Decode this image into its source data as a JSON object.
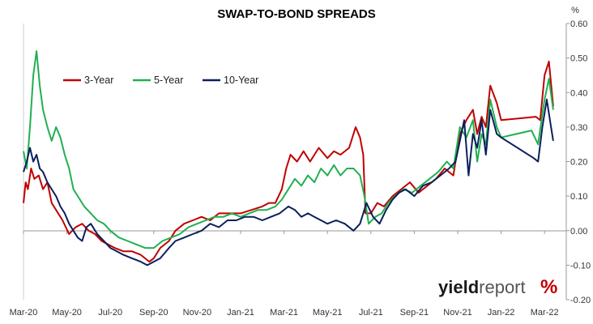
{
  "chart_data": {
    "type": "line",
    "title": "SWAP-TO-BOND SPREADS",
    "ylabel": "%",
    "xlabel": "",
    "ylim": [
      -0.2,
      0.6
    ],
    "yticks": [
      "0.60",
      "0.50",
      "0.40",
      "0.30",
      "0.20",
      "0.10",
      "0.00",
      "-0.10",
      "-0.20"
    ],
    "ytick_values": [
      0.6,
      0.5,
      0.4,
      0.3,
      0.2,
      0.1,
      0.0,
      -0.1,
      -0.2
    ],
    "xlim": [
      0,
      25
    ],
    "xticks": [
      "Mar-20",
      "May-20",
      "Jul-20",
      "Sep-20",
      "Nov-20",
      "Jan-21",
      "Mar-21",
      "May-21",
      "Jul-21",
      "Sep-21",
      "Nov-21",
      "Jan-22",
      "Mar-22"
    ],
    "xtick_values": [
      0,
      2,
      4,
      6,
      8,
      10,
      12,
      14,
      16,
      18,
      20,
      22,
      24
    ],
    "x_unit": "months from Mar-20",
    "grid": false,
    "legend_position": "top-left",
    "series": [
      {
        "name": "3-Year",
        "color": "#c00000",
        "points": [
          [
            0,
            0.08
          ],
          [
            0.1,
            0.14
          ],
          [
            0.2,
            0.12
          ],
          [
            0.35,
            0.18
          ],
          [
            0.5,
            0.15
          ],
          [
            0.7,
            0.16
          ],
          [
            0.9,
            0.12
          ],
          [
            1.1,
            0.14
          ],
          [
            1.3,
            0.08
          ],
          [
            1.5,
            0.06
          ],
          [
            1.8,
            0.03
          ],
          [
            2.1,
            -0.01
          ],
          [
            2.4,
            0.01
          ],
          [
            2.7,
            0.02
          ],
          [
            3.0,
            0.0
          ],
          [
            3.3,
            -0.01
          ],
          [
            3.6,
            -0.03
          ],
          [
            3.9,
            -0.04
          ],
          [
            4.2,
            -0.05
          ],
          [
            4.6,
            -0.06
          ],
          [
            5.0,
            -0.06
          ],
          [
            5.4,
            -0.07
          ],
          [
            5.8,
            -0.09
          ],
          [
            6.0,
            -0.08
          ],
          [
            6.3,
            -0.05
          ],
          [
            6.7,
            -0.03
          ],
          [
            7.0,
            0.0
          ],
          [
            7.4,
            0.02
          ],
          [
            7.8,
            0.03
          ],
          [
            8.2,
            0.04
          ],
          [
            8.6,
            0.03
          ],
          [
            9.0,
            0.05
          ],
          [
            9.5,
            0.05
          ],
          [
            10.0,
            0.05
          ],
          [
            10.5,
            0.06
          ],
          [
            11.0,
            0.07
          ],
          [
            11.3,
            0.08
          ],
          [
            11.6,
            0.08
          ],
          [
            11.9,
            0.12
          ],
          [
            12.1,
            0.18
          ],
          [
            12.3,
            0.22
          ],
          [
            12.6,
            0.2
          ],
          [
            12.9,
            0.23
          ],
          [
            13.2,
            0.2
          ],
          [
            13.6,
            0.24
          ],
          [
            14.0,
            0.21
          ],
          [
            14.3,
            0.23
          ],
          [
            14.6,
            0.22
          ],
          [
            15.0,
            0.24
          ],
          [
            15.3,
            0.3
          ],
          [
            15.5,
            0.27
          ],
          [
            15.65,
            0.22
          ],
          [
            15.75,
            0.05
          ],
          [
            16.0,
            0.05
          ],
          [
            16.3,
            0.08
          ],
          [
            16.6,
            0.07
          ],
          [
            17.0,
            0.1
          ],
          [
            17.4,
            0.12
          ],
          [
            17.8,
            0.14
          ],
          [
            18.2,
            0.11
          ],
          [
            18.6,
            0.13
          ],
          [
            19.0,
            0.15
          ],
          [
            19.4,
            0.18
          ],
          [
            19.8,
            0.16
          ],
          [
            20.1,
            0.28
          ],
          [
            20.4,
            0.32
          ],
          [
            20.7,
            0.35
          ],
          [
            20.9,
            0.28
          ],
          [
            21.1,
            0.33
          ],
          [
            21.3,
            0.3
          ],
          [
            21.5,
            0.42
          ],
          [
            21.8,
            0.37
          ],
          [
            22.0,
            0.32
          ],
          [
            23.6,
            0.33
          ],
          [
            23.8,
            0.32
          ],
          [
            24.0,
            0.45
          ],
          [
            24.2,
            0.49
          ],
          [
            24.4,
            0.36
          ]
        ]
      },
      {
        "name": "5-Year",
        "color": "#20b050",
        "points": [
          [
            0,
            0.23
          ],
          [
            0.15,
            0.18
          ],
          [
            0.3,
            0.3
          ],
          [
            0.45,
            0.45
          ],
          [
            0.6,
            0.52
          ],
          [
            0.75,
            0.42
          ],
          [
            0.9,
            0.35
          ],
          [
            1.1,
            0.3
          ],
          [
            1.3,
            0.26
          ],
          [
            1.5,
            0.3
          ],
          [
            1.7,
            0.27
          ],
          [
            1.9,
            0.22
          ],
          [
            2.1,
            0.18
          ],
          [
            2.3,
            0.12
          ],
          [
            2.5,
            0.1
          ],
          [
            2.8,
            0.07
          ],
          [
            3.1,
            0.05
          ],
          [
            3.4,
            0.03
          ],
          [
            3.7,
            0.02
          ],
          [
            4.0,
            0.0
          ],
          [
            4.4,
            -0.02
          ],
          [
            4.8,
            -0.03
          ],
          [
            5.2,
            -0.04
          ],
          [
            5.6,
            -0.05
          ],
          [
            6.0,
            -0.05
          ],
          [
            6.4,
            -0.03
          ],
          [
            6.8,
            -0.02
          ],
          [
            7.2,
            -0.01
          ],
          [
            7.6,
            0.01
          ],
          [
            8.0,
            0.02
          ],
          [
            8.4,
            0.03
          ],
          [
            8.8,
            0.04
          ],
          [
            9.2,
            0.04
          ],
          [
            9.6,
            0.05
          ],
          [
            10.0,
            0.04
          ],
          [
            10.4,
            0.05
          ],
          [
            10.8,
            0.06
          ],
          [
            11.2,
            0.06
          ],
          [
            11.6,
            0.07
          ],
          [
            11.9,
            0.09
          ],
          [
            12.2,
            0.12
          ],
          [
            12.5,
            0.15
          ],
          [
            12.8,
            0.13
          ],
          [
            13.1,
            0.16
          ],
          [
            13.4,
            0.14
          ],
          [
            13.7,
            0.18
          ],
          [
            14.0,
            0.16
          ],
          [
            14.3,
            0.19
          ],
          [
            14.6,
            0.16
          ],
          [
            14.9,
            0.18
          ],
          [
            15.2,
            0.18
          ],
          [
            15.5,
            0.16
          ],
          [
            15.7,
            0.1
          ],
          [
            15.9,
            0.02
          ],
          [
            16.2,
            0.04
          ],
          [
            16.5,
            0.05
          ],
          [
            16.8,
            0.08
          ],
          [
            17.1,
            0.1
          ],
          [
            17.5,
            0.12
          ],
          [
            17.9,
            0.11
          ],
          [
            18.3,
            0.13
          ],
          [
            18.7,
            0.15
          ],
          [
            19.1,
            0.17
          ],
          [
            19.5,
            0.2
          ],
          [
            19.8,
            0.18
          ],
          [
            20.1,
            0.3
          ],
          [
            20.4,
            0.27
          ],
          [
            20.7,
            0.32
          ],
          [
            20.9,
            0.2
          ],
          [
            21.1,
            0.28
          ],
          [
            21.3,
            0.25
          ],
          [
            21.5,
            0.38
          ],
          [
            21.8,
            0.3
          ],
          [
            22.0,
            0.27
          ],
          [
            23.4,
            0.29
          ],
          [
            23.7,
            0.25
          ],
          [
            24.0,
            0.38
          ],
          [
            24.2,
            0.44
          ],
          [
            24.4,
            0.35
          ]
        ]
      },
      {
        "name": "10-Year",
        "color": "#0b1f5c",
        "points": [
          [
            0,
            0.17
          ],
          [
            0.15,
            0.2
          ],
          [
            0.3,
            0.24
          ],
          [
            0.45,
            0.2
          ],
          [
            0.6,
            0.22
          ],
          [
            0.75,
            0.18
          ],
          [
            0.9,
            0.17
          ],
          [
            1.1,
            0.14
          ],
          [
            1.3,
            0.12
          ],
          [
            1.5,
            0.1
          ],
          [
            1.7,
            0.07
          ],
          [
            1.9,
            0.05
          ],
          [
            2.1,
            0.02
          ],
          [
            2.3,
            0.0
          ],
          [
            2.5,
            -0.02
          ],
          [
            2.7,
            -0.03
          ],
          [
            2.9,
            0.01
          ],
          [
            3.1,
            0.02
          ],
          [
            3.4,
            -0.01
          ],
          [
            3.7,
            -0.03
          ],
          [
            4.0,
            -0.05
          ],
          [
            4.3,
            -0.06
          ],
          [
            4.6,
            -0.07
          ],
          [
            5.0,
            -0.08
          ],
          [
            5.4,
            -0.09
          ],
          [
            5.7,
            -0.1
          ],
          [
            6.0,
            -0.09
          ],
          [
            6.3,
            -0.08
          ],
          [
            6.7,
            -0.05
          ],
          [
            7.0,
            -0.03
          ],
          [
            7.4,
            -0.02
          ],
          [
            7.8,
            -0.01
          ],
          [
            8.2,
            0.0
          ],
          [
            8.6,
            0.02
          ],
          [
            9.0,
            0.01
          ],
          [
            9.4,
            0.03
          ],
          [
            9.8,
            0.03
          ],
          [
            10.2,
            0.04
          ],
          [
            10.6,
            0.04
          ],
          [
            11.0,
            0.03
          ],
          [
            11.4,
            0.04
          ],
          [
            11.8,
            0.05
          ],
          [
            12.2,
            0.07
          ],
          [
            12.5,
            0.06
          ],
          [
            12.8,
            0.04
          ],
          [
            13.1,
            0.05
          ],
          [
            13.4,
            0.04
          ],
          [
            13.7,
            0.03
          ],
          [
            14.0,
            0.02
          ],
          [
            14.4,
            0.03
          ],
          [
            14.8,
            0.02
          ],
          [
            15.2,
            0.0
          ],
          [
            15.5,
            0.02
          ],
          [
            15.8,
            0.08
          ],
          [
            16.1,
            0.04
          ],
          [
            16.4,
            0.02
          ],
          [
            16.7,
            0.06
          ],
          [
            17.0,
            0.09
          ],
          [
            17.3,
            0.11
          ],
          [
            17.6,
            0.12
          ],
          [
            18.0,
            0.1
          ],
          [
            18.4,
            0.13
          ],
          [
            18.8,
            0.14
          ],
          [
            19.2,
            0.16
          ],
          [
            19.6,
            0.18
          ],
          [
            19.9,
            0.2
          ],
          [
            20.1,
            0.26
          ],
          [
            20.3,
            0.32
          ],
          [
            20.5,
            0.16
          ],
          [
            20.7,
            0.28
          ],
          [
            20.9,
            0.24
          ],
          [
            21.1,
            0.32
          ],
          [
            21.3,
            0.22
          ],
          [
            21.5,
            0.35
          ],
          [
            21.8,
            0.28
          ],
          [
            22.0,
            0.27
          ],
          [
            23.5,
            0.21
          ],
          [
            23.7,
            0.2
          ],
          [
            23.9,
            0.3
          ],
          [
            24.1,
            0.38
          ],
          [
            24.3,
            0.3
          ],
          [
            24.4,
            0.26
          ]
        ]
      }
    ]
  },
  "branding": {
    "logo_main": "yield",
    "logo_sub": "report",
    "logo_pct": "%",
    "pct_color": "#c00000"
  }
}
